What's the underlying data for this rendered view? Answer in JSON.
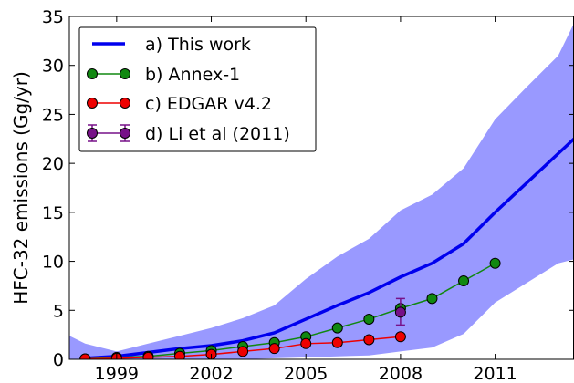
{
  "chart_data": {
    "type": "line",
    "title": "",
    "xlabel": "",
    "ylabel": "HFC-32 emissions (Gg/yr)",
    "xlim": [
      1997.5,
      2013.5
    ],
    "ylim": [
      0,
      35
    ],
    "xticks": [
      1999,
      2002,
      2005,
      2008,
      2011
    ],
    "yticks": [
      0,
      5,
      10,
      15,
      20,
      25,
      30,
      35
    ],
    "grid": false,
    "legend_position": "top-left",
    "colors": {
      "this_work": "#0000ee",
      "uncertainty": "#9999ff",
      "annex1": "#118811",
      "edgar": "#ee0000",
      "li": "#771188"
    },
    "uncertainty_band": {
      "x": [
        1997.5,
        1998,
        1999,
        2000,
        2001,
        2002,
        2003,
        2004,
        2005,
        2006,
        2007,
        2008,
        2009,
        2010,
        2011,
        2012,
        2013,
        2013.5
      ],
      "upper": [
        2.4,
        1.6,
        0.8,
        1.6,
        2.4,
        3.2,
        4.2,
        5.5,
        8.2,
        10.5,
        12.3,
        15.2,
        16.8,
        19.5,
        24.5,
        27.8,
        31.0,
        34.3
      ],
      "lower": [
        0.0,
        0.0,
        0.0,
        0.0,
        0.0,
        0.0,
        0.0,
        0.1,
        0.2,
        0.3,
        0.4,
        0.8,
        1.2,
        2.6,
        5.8,
        7.8,
        9.8,
        10.2
      ]
    },
    "series": [
      {
        "name": "a) This work",
        "style": "line",
        "x": [
          1998,
          1999,
          2000,
          2001,
          2002,
          2003,
          2004,
          2005,
          2006,
          2007,
          2008,
          2009,
          2010,
          2011,
          2012,
          2013,
          2013.5
        ],
        "values": [
          0.1,
          0.3,
          0.7,
          1.1,
          1.4,
          1.9,
          2.7,
          4.1,
          5.5,
          6.8,
          8.4,
          9.8,
          11.8,
          15.0,
          18.0,
          21.0,
          22.5
        ]
      },
      {
        "name": "b) Annex-1",
        "style": "line-markers",
        "x": [
          1998,
          1999,
          2000,
          2001,
          2002,
          2003,
          2004,
          2005,
          2006,
          2007,
          2008,
          2009,
          2010,
          2011
        ],
        "values": [
          0.05,
          0.2,
          0.3,
          0.6,
          0.9,
          1.3,
          1.7,
          2.3,
          3.2,
          4.1,
          5.2,
          6.2,
          8.0,
          9.8
        ]
      },
      {
        "name": "c) EDGAR v4.2",
        "style": "line-markers",
        "x": [
          1998,
          1999,
          2000,
          2001,
          2002,
          2003,
          2004,
          2005,
          2006,
          2007,
          2008
        ],
        "values": [
          0.05,
          0.1,
          0.2,
          0.3,
          0.5,
          0.8,
          1.1,
          1.6,
          1.7,
          2.0,
          2.3
        ]
      },
      {
        "name": "d) Li et al (2011)",
        "style": "errorbar",
        "x": [
          2008
        ],
        "values": [
          4.8
        ],
        "err_low": [
          3.5
        ],
        "err_high": [
          6.2
        ]
      }
    ]
  }
}
